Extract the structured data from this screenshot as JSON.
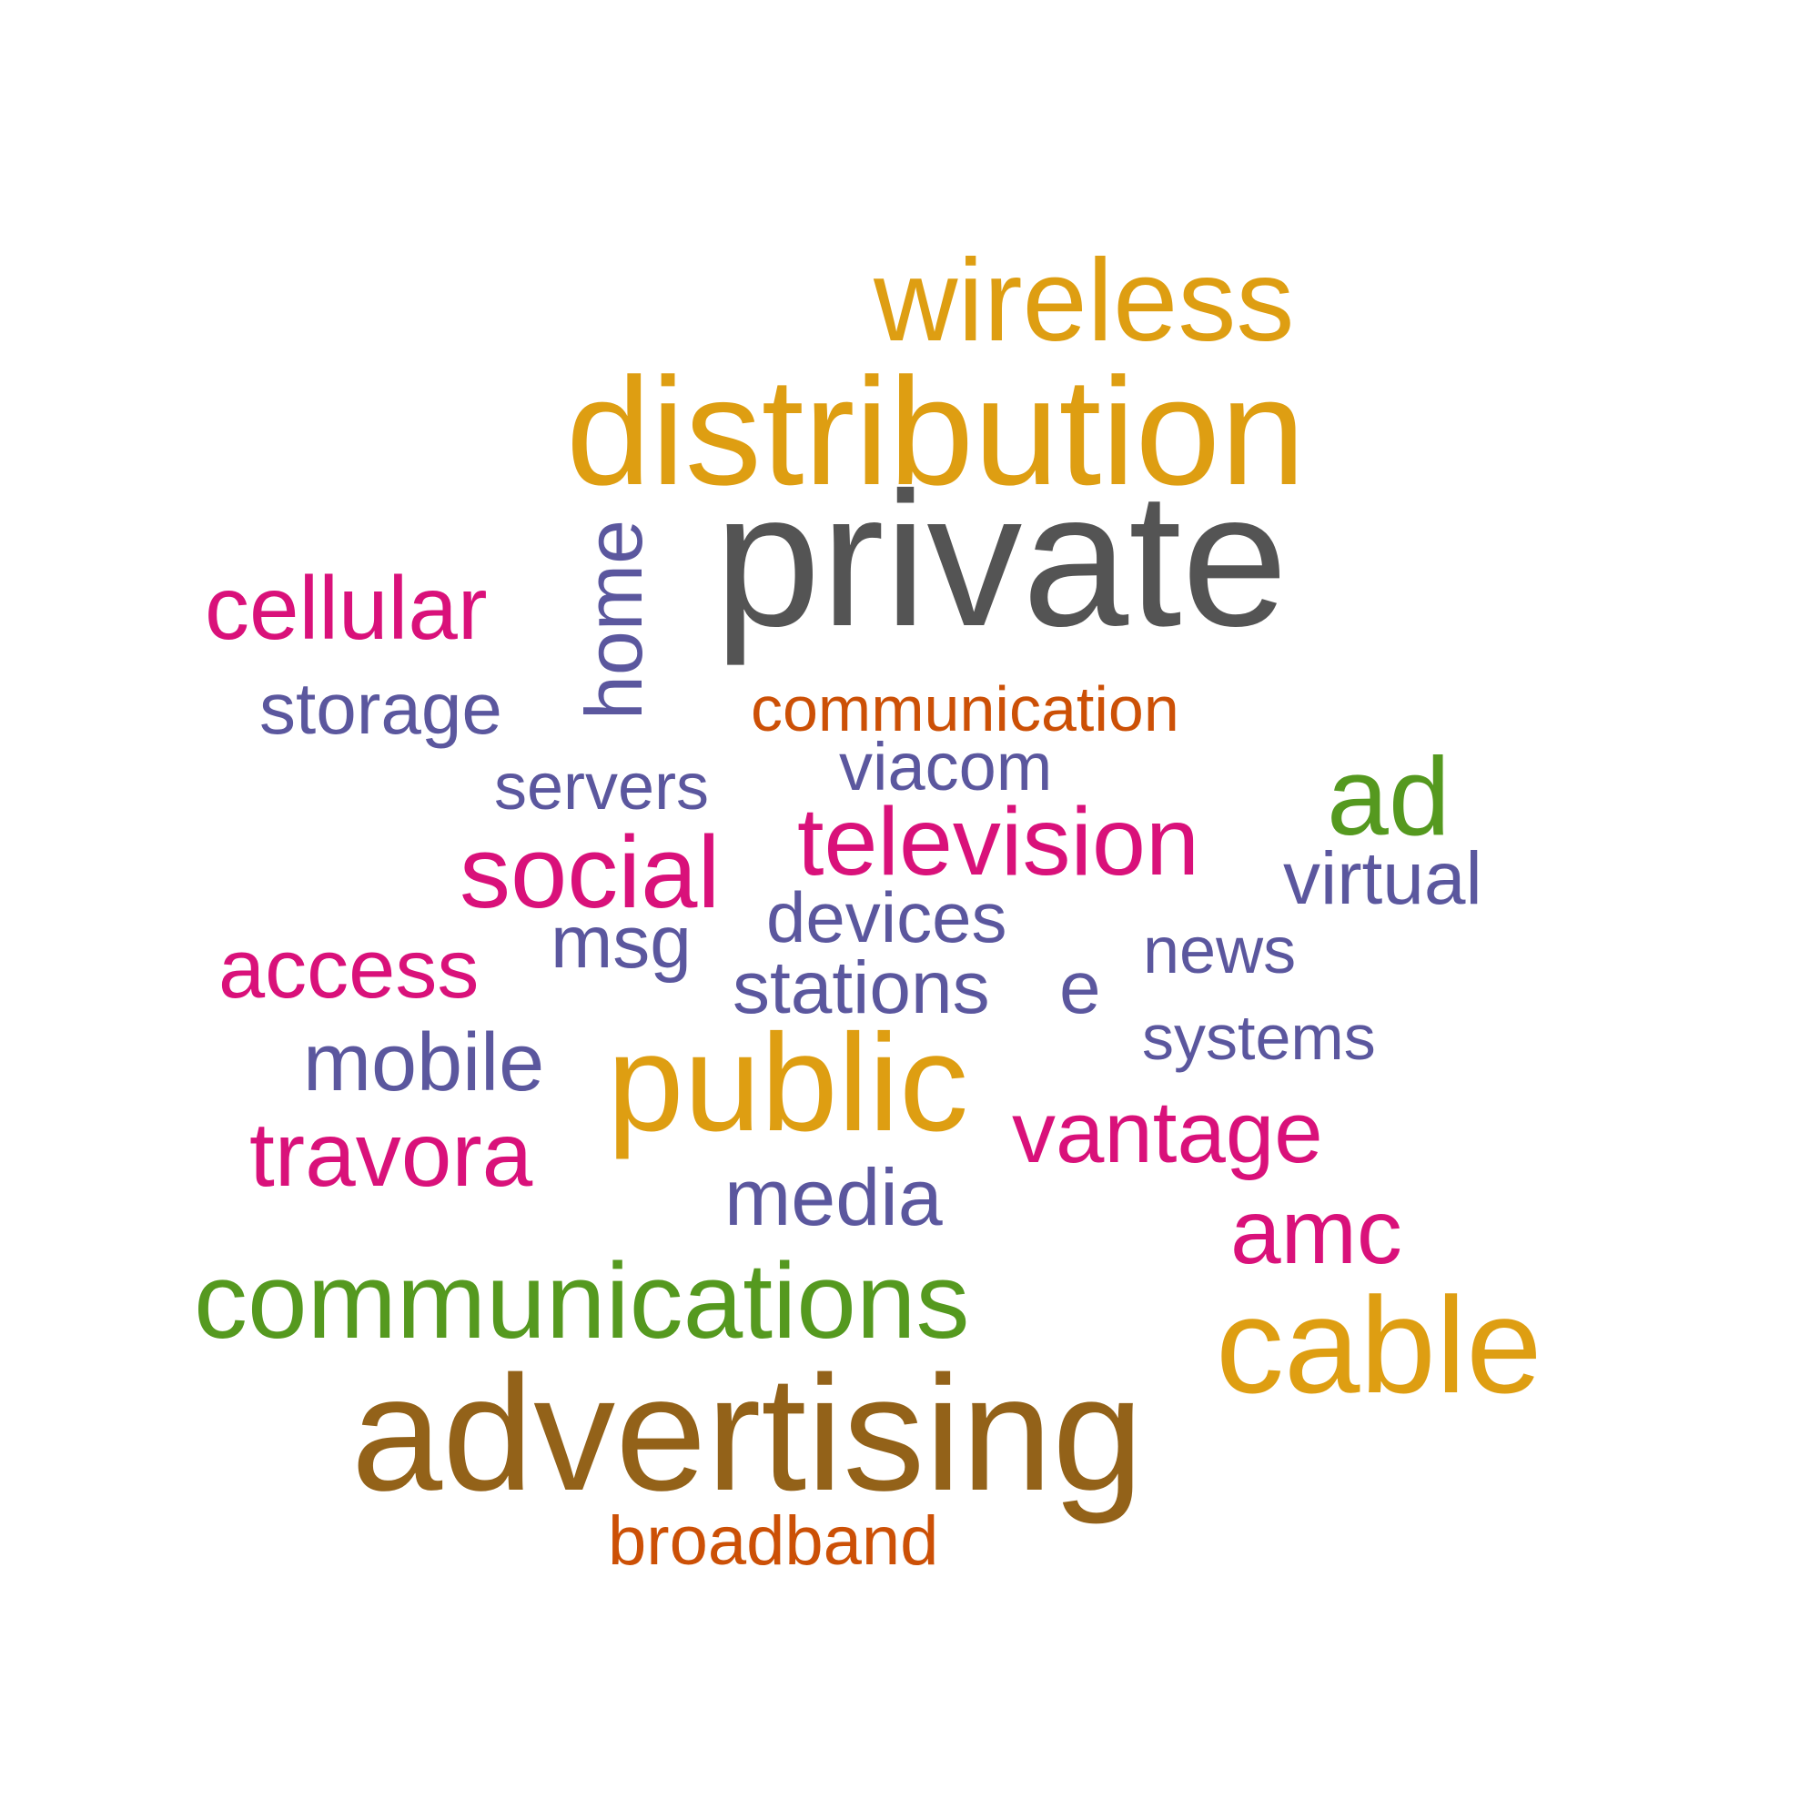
{
  "palette": {
    "gray": "#545454",
    "gold": "#de9e12",
    "magenta": "#d9117a",
    "purple": "#5b579e",
    "green": "#55991f",
    "orange": "#cc5006",
    "brown": "#936219"
  },
  "words": [
    {
      "id": "private",
      "text": "private",
      "color": "gray"
    },
    {
      "id": "wireless",
      "text": "wireless",
      "color": "gold"
    },
    {
      "id": "distribution",
      "text": "distribution",
      "color": "gold"
    },
    {
      "id": "public",
      "text": "public",
      "color": "gold"
    },
    {
      "id": "cable",
      "text": "cable",
      "color": "gold"
    },
    {
      "id": "advertising",
      "text": "advertising",
      "color": "brown"
    },
    {
      "id": "communications",
      "text": "communications",
      "color": "green"
    },
    {
      "id": "ad",
      "text": "ad",
      "color": "green"
    },
    {
      "id": "home",
      "text": "home",
      "color": "purple"
    },
    {
      "id": "cellular",
      "text": "cellular",
      "color": "magenta"
    },
    {
      "id": "television",
      "text": "television",
      "color": "magenta"
    },
    {
      "id": "social",
      "text": "social",
      "color": "magenta"
    },
    {
      "id": "access",
      "text": "access",
      "color": "magenta"
    },
    {
      "id": "travora",
      "text": "travora",
      "color": "magenta"
    },
    {
      "id": "vantage",
      "text": "vantage",
      "color": "magenta"
    },
    {
      "id": "amc",
      "text": "amc",
      "color": "magenta"
    },
    {
      "id": "communication",
      "text": "communication",
      "color": "orange"
    },
    {
      "id": "broadband",
      "text": "broadband",
      "color": "orange"
    },
    {
      "id": "storage",
      "text": "storage",
      "color": "purple"
    },
    {
      "id": "servers",
      "text": "servers",
      "color": "purple"
    },
    {
      "id": "viacom",
      "text": "viacom",
      "color": "purple"
    },
    {
      "id": "virtual",
      "text": "virtual",
      "color": "purple"
    },
    {
      "id": "devices",
      "text": "devices",
      "color": "purple"
    },
    {
      "id": "msg",
      "text": "msg",
      "color": "purple"
    },
    {
      "id": "stations",
      "text": "stations",
      "color": "purple"
    },
    {
      "id": "e",
      "text": "e",
      "color": "purple"
    },
    {
      "id": "news",
      "text": "news",
      "color": "purple"
    },
    {
      "id": "systems",
      "text": "systems",
      "color": "purple"
    },
    {
      "id": "mobile",
      "text": "mobile",
      "color": "purple"
    },
    {
      "id": "media",
      "text": "media",
      "color": "purple"
    }
  ]
}
